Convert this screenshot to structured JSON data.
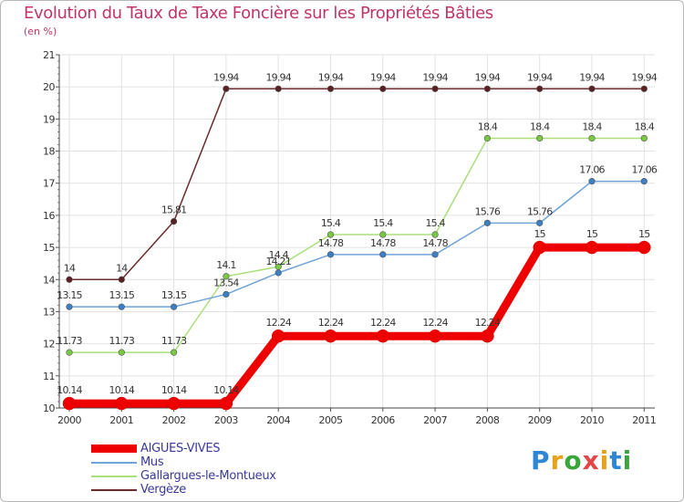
{
  "header": {
    "title": "Evolution du Taux de Taxe Foncière sur les Propriétés Bâties",
    "subtitle": "(en %)"
  },
  "brand": {
    "name": "Proxiti",
    "letters": [
      "P",
      "r",
      "o",
      "x",
      "i",
      "t",
      "i"
    ],
    "colors": [
      "#2e86d6",
      "#e6a21a",
      "#3aa53a",
      "#e04848",
      "#e6a21a",
      "#2e86d6",
      "#3aa53a"
    ]
  },
  "chart_data": {
    "type": "line",
    "title": "Evolution du Taux de Taxe Foncière sur les Propriétés Bâties",
    "ylabel": "(en %)",
    "xlabel": "",
    "categories": [
      "2000",
      "2001",
      "2002",
      "2003",
      "2004",
      "2005",
      "2006",
      "2007",
      "2008",
      "2009",
      "2010",
      "2011"
    ],
    "ylim": [
      10,
      21
    ],
    "yticks": [
      "10",
      "11",
      "12",
      "13",
      "14",
      "15",
      "16",
      "17",
      "18",
      "19",
      "20",
      "21"
    ],
    "grid": true,
    "legend_position": "bottom-left",
    "series": [
      {
        "name": "Vergèze",
        "color": "#6b2a2e",
        "marker": "#5a1f22",
        "emphasis": false,
        "values": [
          14,
          14,
          15.81,
          19.94,
          19.94,
          19.94,
          19.94,
          19.94,
          19.94,
          19.94,
          19.94,
          19.94
        ],
        "labels": [
          "14",
          "14",
          "15.81",
          "19.94",
          "19.94",
          "19.94",
          "19.94",
          "19.94",
          "19.94",
          "19.94",
          "19.94",
          "19.94"
        ]
      },
      {
        "name": "Gallargues-le-Montueux",
        "color": "#a9e07a",
        "marker": "#7ac943",
        "emphasis": false,
        "values": [
          11.73,
          11.73,
          11.73,
          14.1,
          14.4,
          15.4,
          15.4,
          15.4,
          18.4,
          18.4,
          18.4,
          18.4
        ],
        "labels": [
          "11.73",
          "11.73",
          "11.73",
          "14.1",
          "14.4",
          "15.4",
          "15.4",
          "15.4",
          "18.4",
          "18.4",
          "18.4",
          "18.4"
        ]
      },
      {
        "name": "Mus",
        "color": "#6fa3d8",
        "marker": "#3d7fc4",
        "emphasis": false,
        "values": [
          13.15,
          13.15,
          13.15,
          13.54,
          14.21,
          14.78,
          14.78,
          14.78,
          15.76,
          15.76,
          17.06,
          17.06
        ],
        "labels": [
          "13.15",
          "13.15",
          "13.15",
          "13.54",
          "14.21",
          "14.78",
          "14.78",
          "14.78",
          "15.76",
          "15.76",
          "17.06",
          "17.06"
        ]
      },
      {
        "name": "AIGUES-VIVES",
        "color": "#ee0000",
        "marker": "#ee0000",
        "emphasis": true,
        "values": [
          10.14,
          10.14,
          10.14,
          10.14,
          12.24,
          12.24,
          12.24,
          12.24,
          12.24,
          15,
          15,
          15
        ],
        "labels": [
          "10.14",
          "10.14",
          "10.14",
          "10.14",
          "12.24",
          "12.24",
          "12.24",
          "12.24",
          "12.24",
          "15",
          "15",
          "15"
        ]
      }
    ],
    "legend": [
      {
        "name": "AIGUES-VIVES",
        "color": "#ee0000",
        "thick": true
      },
      {
        "name": "Mus",
        "color": "#6fa3d8",
        "thick": false
      },
      {
        "name": "Gallargues-le-Montueux",
        "color": "#a9e07a",
        "thick": false
      },
      {
        "name": "Vergèze",
        "color": "#6b2a2e",
        "thick": false
      }
    ]
  }
}
